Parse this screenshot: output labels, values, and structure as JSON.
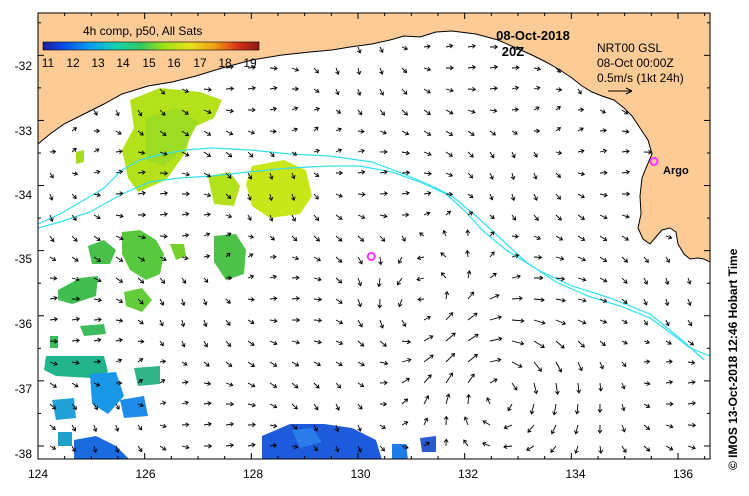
{
  "legend": {
    "title": "4h comp, p50, All Sats",
    "labels": [
      "11",
      "12",
      "13",
      "14",
      "15",
      "16",
      "17",
      "18",
      "19"
    ],
    "colors": [
      "#1c1c9e",
      "#0a4ff0",
      "#0aa0f0",
      "#16d2b4",
      "#2ec860",
      "#9ee21a",
      "#e8e21a",
      "#f09a14",
      "#d83214",
      "#901818"
    ]
  },
  "header": {
    "date": "08-Oct-2018",
    "time": "20Z"
  },
  "current_info": {
    "line1": "NRT00 GSL",
    "line2": "08-Oct 00:00Z",
    "line3": "0.5m/s (1kt 24h)"
  },
  "argo": {
    "label": "Argo",
    "color": "#ff33ff",
    "floats": [
      {
        "lon": 135.55,
        "lat": -33.63
      },
      {
        "lon": 130.25,
        "lat": -35.09
      }
    ]
  },
  "credit": "© IMOS 13-Oct-2018 12:46 Hobart Time",
  "axes": {
    "lon_ticks": [
      "124",
      "126",
      "128",
      "130",
      "132",
      "134",
      "136"
    ],
    "lat_ticks": [
      "-32",
      "-33",
      "-34",
      "-35",
      "-36",
      "-37",
      "-38"
    ],
    "lon_range": [
      124,
      136.6
    ],
    "lat_range": [
      -31.35,
      -38.2
    ]
  },
  "colors": {
    "land": "#fdcb95",
    "ocean": "#ffffff",
    "contour": "#33e0f0",
    "vector": "#000000"
  }
}
